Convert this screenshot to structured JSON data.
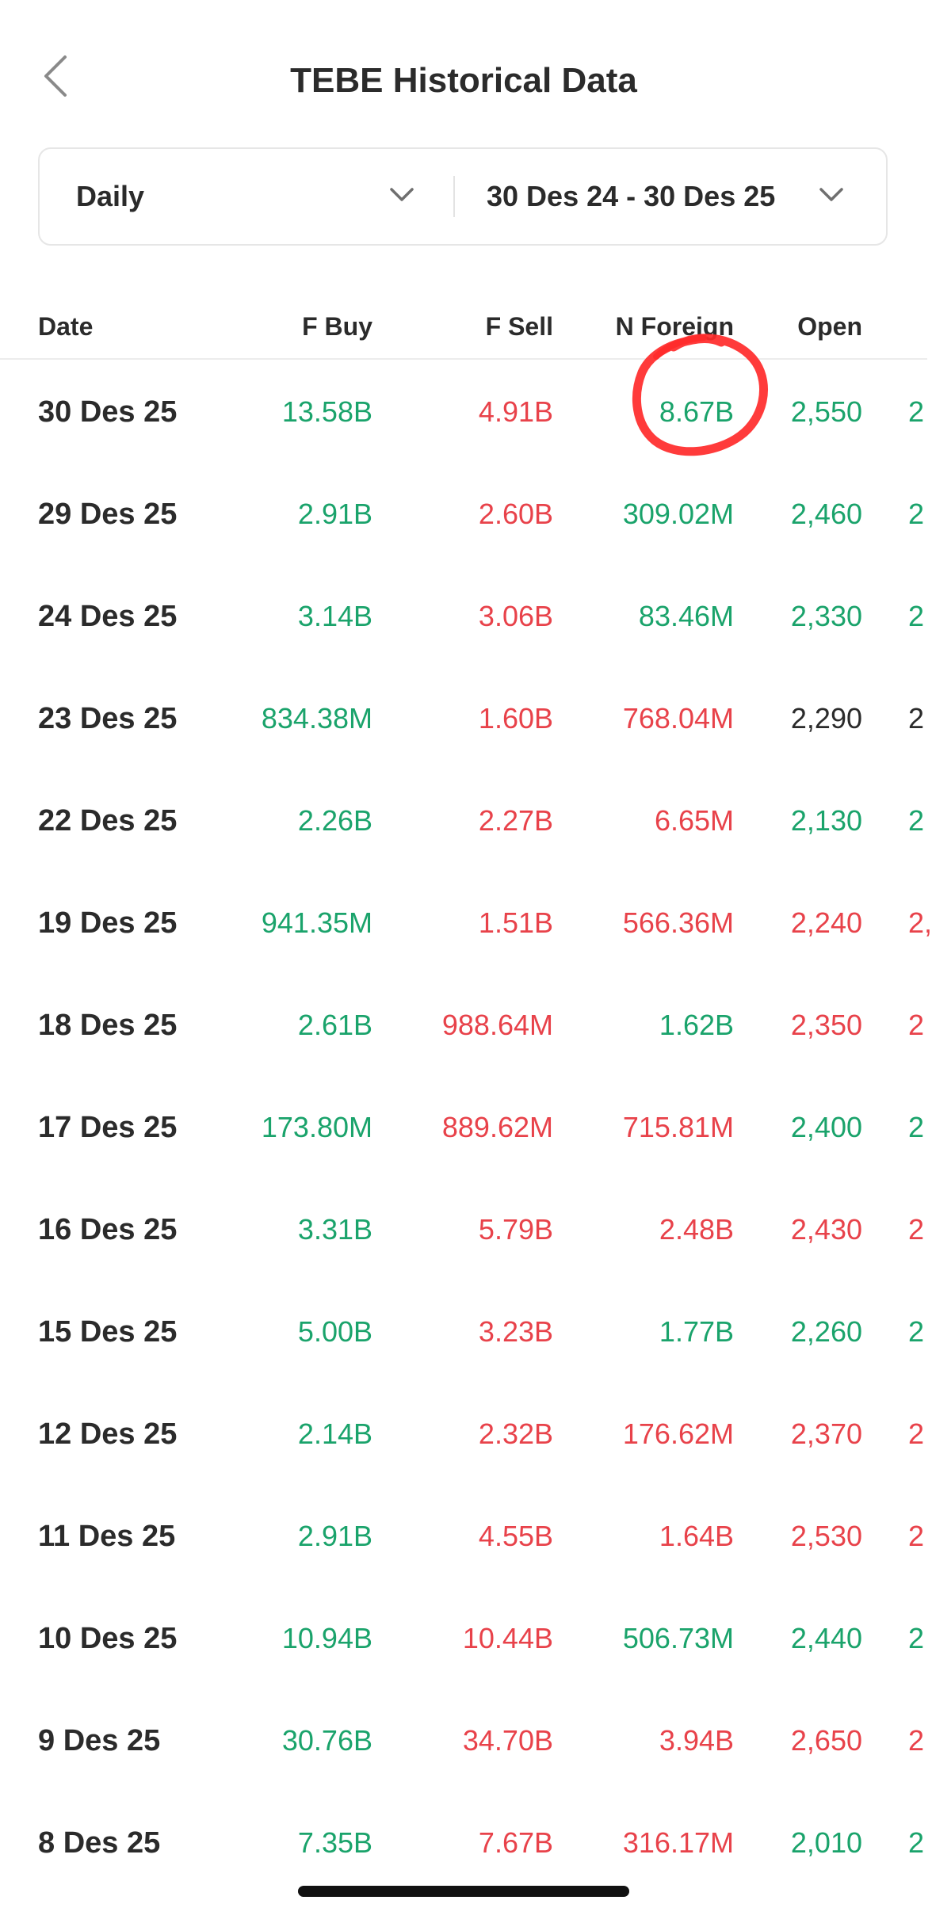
{
  "header": {
    "title": "TEBE Historical Data",
    "back_icon": "chevron-left-icon"
  },
  "filters": {
    "period": "Daily",
    "range": "30 Des 24 - 30 Des 25",
    "chevron_icon": "chevron-down-icon"
  },
  "table": {
    "columns": [
      "Date",
      "F Buy",
      "F Sell",
      "N Foreign",
      "Open"
    ],
    "rows": [
      {
        "date": "30 Des 25",
        "f_buy": "13.58B",
        "f_sell": "4.91B",
        "n_foreign": "8.67B",
        "n_foreign_dir": "up",
        "open": "2,550",
        "open_dir": "up",
        "next": "2"
      },
      {
        "date": "29 Des 25",
        "f_buy": "2.91B",
        "f_sell": "2.60B",
        "n_foreign": "309.02M",
        "n_foreign_dir": "up",
        "open": "2,460",
        "open_dir": "up",
        "next": "2"
      },
      {
        "date": "24 Des 25",
        "f_buy": "3.14B",
        "f_sell": "3.06B",
        "n_foreign": "83.46M",
        "n_foreign_dir": "up",
        "open": "2,330",
        "open_dir": "up",
        "next": "2"
      },
      {
        "date": "23 Des 25",
        "f_buy": "834.38M",
        "f_sell": "1.60B",
        "n_foreign": "768.04M",
        "n_foreign_dir": "down",
        "open": "2,290",
        "open_dir": "flat",
        "next": "2"
      },
      {
        "date": "22 Des 25",
        "f_buy": "2.26B",
        "f_sell": "2.27B",
        "n_foreign": "6.65M",
        "n_foreign_dir": "down",
        "open": "2,130",
        "open_dir": "up",
        "next": "2"
      },
      {
        "date": "19 Des 25",
        "f_buy": "941.35M",
        "f_sell": "1.51B",
        "n_foreign": "566.36M",
        "n_foreign_dir": "down",
        "open": "2,240",
        "open_dir": "down",
        "next": "2,"
      },
      {
        "date": "18 Des 25",
        "f_buy": "2.61B",
        "f_sell": "988.64M",
        "n_foreign": "1.62B",
        "n_foreign_dir": "up",
        "open": "2,350",
        "open_dir": "down",
        "next": "2"
      },
      {
        "date": "17 Des 25",
        "f_buy": "173.80M",
        "f_sell": "889.62M",
        "n_foreign": "715.81M",
        "n_foreign_dir": "down",
        "open": "2,400",
        "open_dir": "up",
        "next": "2"
      },
      {
        "date": "16 Des 25",
        "f_buy": "3.31B",
        "f_sell": "5.79B",
        "n_foreign": "2.48B",
        "n_foreign_dir": "down",
        "open": "2,430",
        "open_dir": "down",
        "next": "2"
      },
      {
        "date": "15 Des 25",
        "f_buy": "5.00B",
        "f_sell": "3.23B",
        "n_foreign": "1.77B",
        "n_foreign_dir": "up",
        "open": "2,260",
        "open_dir": "up",
        "next": "2"
      },
      {
        "date": "12 Des 25",
        "f_buy": "2.14B",
        "f_sell": "2.32B",
        "n_foreign": "176.62M",
        "n_foreign_dir": "down",
        "open": "2,370",
        "open_dir": "down",
        "next": "2"
      },
      {
        "date": "11 Des 25",
        "f_buy": "2.91B",
        "f_sell": "4.55B",
        "n_foreign": "1.64B",
        "n_foreign_dir": "down",
        "open": "2,530",
        "open_dir": "down",
        "next": "2"
      },
      {
        "date": "10 Des 25",
        "f_buy": "10.94B",
        "f_sell": "10.44B",
        "n_foreign": "506.73M",
        "n_foreign_dir": "up",
        "open": "2,440",
        "open_dir": "up",
        "next": "2"
      },
      {
        "date": "9 Des 25",
        "f_buy": "30.76B",
        "f_sell": "34.70B",
        "n_foreign": "3.94B",
        "n_foreign_dir": "down",
        "open": "2,650",
        "open_dir": "down",
        "next": "2"
      },
      {
        "date": "8 Des 25",
        "f_buy": "7.35B",
        "f_sell": "7.67B",
        "n_foreign": "316.17M",
        "n_foreign_dir": "down",
        "open": "2,010",
        "open_dir": "up",
        "next": "2"
      }
    ]
  },
  "colors": {
    "positive": "#1aa36b",
    "negative": "#e8424a",
    "neutral": "#2b2b2b",
    "annotation": "#ff2a2a"
  },
  "annotation": {
    "shape": "hand-drawn-circle",
    "target": "30 Des 25 N Foreign"
  }
}
